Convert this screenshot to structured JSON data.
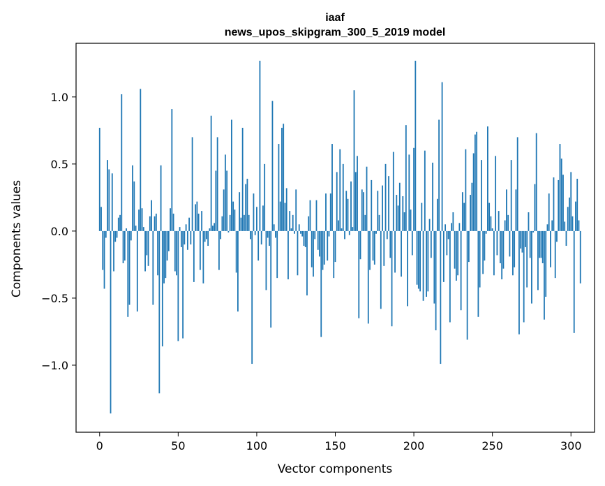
{
  "chart_data": {
    "type": "bar",
    "title": "iaaf",
    "subtitle": "news_upos_skipgram_300_5_2019 model",
    "xlabel": "Vector components",
    "ylabel": "Components values",
    "xlim": [
      -15,
      315
    ],
    "ylim": [
      -1.5,
      1.4
    ],
    "x_ticks": [
      0,
      50,
      100,
      150,
      200,
      250,
      300
    ],
    "x_tick_labels": [
      "0",
      "50",
      "100",
      "150",
      "200",
      "250",
      "300"
    ],
    "y_ticks": [
      -1.0,
      -0.5,
      0.0,
      0.5,
      1.0
    ],
    "y_tick_labels": [
      "−1.0",
      "−0.5",
      "0.0",
      "0.5",
      "1.0"
    ],
    "grid": false,
    "bar_color": "#1f77b4",
    "values": [
      0.77,
      0.18,
      -0.29,
      -0.43,
      -0.05,
      0.53,
      0.46,
      -1.36,
      0.43,
      -0.3,
      -0.08,
      -0.05,
      0.1,
      0.12,
      1.02,
      -0.24,
      -0.22,
      0.02,
      -0.64,
      -0.55,
      -0.07,
      0.49,
      0.37,
      0.04,
      -0.6,
      0.16,
      1.06,
      0.17,
      0.03,
      -0.3,
      -0.18,
      -0.26,
      0.11,
      0.23,
      -0.55,
      0.11,
      0.13,
      -0.33,
      -1.21,
      0.49,
      -0.86,
      -0.39,
      -0.35,
      -0.22,
      -0.15,
      0.17,
      0.91,
      0.13,
      -0.3,
      -0.33,
      -0.82,
      0.03,
      -0.12,
      -0.8,
      -0.1,
      0.05,
      -0.14,
      0.1,
      -0.1,
      0.7,
      -0.38,
      0.2,
      0.22,
      0.13,
      -0.29,
      0.15,
      -0.39,
      -0.08,
      -0.06,
      -0.11,
      0.02,
      0.86,
      0.04,
      0.06,
      0.45,
      0.7,
      -0.29,
      -0.06,
      0.11,
      0.31,
      0.57,
      0.45,
      -0.01,
      0.12,
      0.83,
      0.22,
      0.16,
      -0.31,
      -0.6,
      0.29,
      0.1,
      0.77,
      0.12,
      0.35,
      0.39,
      0.12,
      -0.06,
      -0.99,
      0.28,
      -0.03,
      0.18,
      -0.22,
      1.27,
      -0.1,
      0.19,
      0.5,
      -0.44,
      -0.05,
      -0.11,
      -0.72,
      0.97,
      0.05,
      -0.05,
      -0.35,
      0.65,
      0.22,
      0.77,
      0.8,
      0.21,
      0.32,
      -0.36,
      0.15,
      0.02,
      0.12,
      -0.02,
      0.31,
      -0.33,
      0.05,
      -0.02,
      -0.04,
      -0.11,
      -0.12,
      -0.48,
      0.11,
      0.23,
      -0.27,
      -0.34,
      -0.06,
      0.23,
      -0.14,
      -0.19,
      -0.79,
      -0.29,
      -0.25,
      0.28,
      -0.22,
      -0.04,
      0.28,
      0.65,
      -0.35,
      -0.23,
      0.44,
      0.08,
      0.61,
      0.02,
      0.5,
      -0.06,
      0.3,
      0.24,
      -0.03,
      0.37,
      0.03,
      1.05,
      0.44,
      0.56,
      -0.65,
      -0.21,
      0.31,
      0.29,
      0.12,
      0.48,
      -0.69,
      -0.29,
      0.38,
      -0.22,
      -0.25,
      -0.02,
      0.3,
      0.12,
      -0.58,
      0.34,
      -0.26,
      0.5,
      -0.06,
      0.41,
      -0.2,
      -0.71,
      0.59,
      -0.31,
      0.27,
      0.19,
      0.36,
      -0.34,
      0.26,
      0.14,
      0.79,
      -0.56,
      0.57,
      0.16,
      -0.18,
      0.62,
      1.27,
      -0.4,
      -0.43,
      -0.45,
      0.21,
      -0.52,
      0.6,
      -0.49,
      -0.45,
      0.09,
      -0.2,
      0.51,
      -0.54,
      -0.74,
      0.24,
      0.83,
      -0.99,
      1.11,
      -0.38,
      0.05,
      -0.18,
      -0.06,
      -0.68,
      0.06,
      0.14,
      -0.28,
      -0.37,
      -0.33,
      0.06,
      -0.59,
      0.29,
      0.21,
      0.61,
      -0.81,
      -0.23,
      0.27,
      0.36,
      0.58,
      0.72,
      0.74,
      -0.64,
      -0.42,
      0.53,
      -0.32,
      -0.22,
      -0.02,
      0.78,
      0.21,
      0.11,
      0.02,
      -0.33,
      0.56,
      -0.18,
      0.15,
      -0.24,
      -0.36,
      -0.28,
      0.08,
      0.31,
      0.12,
      -0.19,
      0.53,
      -0.33,
      -0.27,
      0.31,
      0.7,
      -0.77,
      -0.13,
      -0.16,
      -0.68,
      -0.12,
      -0.42,
      0.14,
      -0.2,
      -0.54,
      -0.01,
      0.35,
      0.73,
      -0.44,
      -0.2,
      -0.2,
      -0.24,
      -0.66,
      -0.49,
      0.05,
      0.28,
      -0.27,
      0.08,
      0.4,
      -0.35,
      -0.08,
      0.38,
      0.65,
      0.54,
      0.42,
      0.07,
      -0.11,
      0.18,
      0.25,
      0.44,
      0.11,
      -0.76,
      0.22,
      0.39,
      0.08,
      -0.39
    ]
  }
}
